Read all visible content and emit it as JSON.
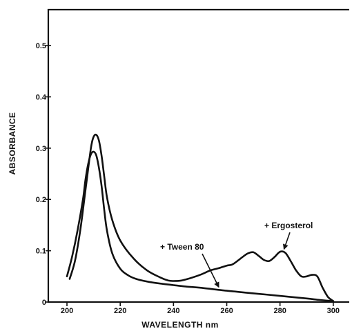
{
  "chart_data": {
    "type": "line",
    "xlabel": "WAVELENGTH   nm",
    "ylabel": "ABSORBANCE",
    "xlim": [
      193,
      306
    ],
    "ylim": [
      0,
      0.57
    ],
    "x_ticks": [
      200,
      220,
      240,
      260,
      280,
      300
    ],
    "y_ticks": [
      0,
      0.1,
      0.2,
      0.3,
      0.4,
      0.5
    ],
    "x_tick_labels": [
      "200",
      "220",
      "240",
      "260",
      "280",
      "300"
    ],
    "y_tick_labels": [
      "0",
      "0.1",
      "0.2",
      "0.3",
      "0.4",
      "0.5"
    ],
    "grid": false,
    "series": [
      {
        "name": "+ Ergosterol",
        "x": [
          201,
          203,
          205,
          207,
          209,
          210,
          211,
          212,
          213,
          214,
          215,
          217,
          220,
          225,
          230,
          235,
          238,
          240,
          243,
          246,
          250,
          254,
          257,
          260,
          262,
          264,
          266,
          268,
          270,
          272,
          274,
          276,
          278,
          280,
          282,
          284,
          286,
          288,
          290,
          292,
          294,
          296,
          298,
          300
        ],
        "y": [
          0.045,
          0.08,
          0.14,
          0.22,
          0.3,
          0.322,
          0.326,
          0.315,
          0.285,
          0.245,
          0.205,
          0.16,
          0.12,
          0.085,
          0.062,
          0.048,
          0.042,
          0.041,
          0.042,
          0.046,
          0.053,
          0.062,
          0.066,
          0.071,
          0.073,
          0.08,
          0.088,
          0.095,
          0.097,
          0.09,
          0.082,
          0.08,
          0.088,
          0.098,
          0.096,
          0.08,
          0.062,
          0.05,
          0.05,
          0.053,
          0.05,
          0.028,
          0.01,
          0.002
        ]
      },
      {
        "name": "+ Tween 80",
        "x": [
          200,
          202,
          204,
          206,
          207,
          208,
          209,
          210,
          211,
          212,
          213,
          214,
          215,
          217,
          220,
          223,
          226,
          230,
          235,
          240,
          245,
          250,
          260,
          270,
          280,
          290,
          295,
          300
        ],
        "y": [
          0.05,
          0.09,
          0.14,
          0.2,
          0.24,
          0.27,
          0.288,
          0.293,
          0.286,
          0.262,
          0.226,
          0.18,
          0.14,
          0.095,
          0.065,
          0.052,
          0.045,
          0.04,
          0.036,
          0.033,
          0.03,
          0.028,
          0.022,
          0.017,
          0.012,
          0.007,
          0.004,
          0.002
        ]
      }
    ],
    "annotations": [
      "+ Tween 80",
      "+ Ergosterol"
    ]
  }
}
